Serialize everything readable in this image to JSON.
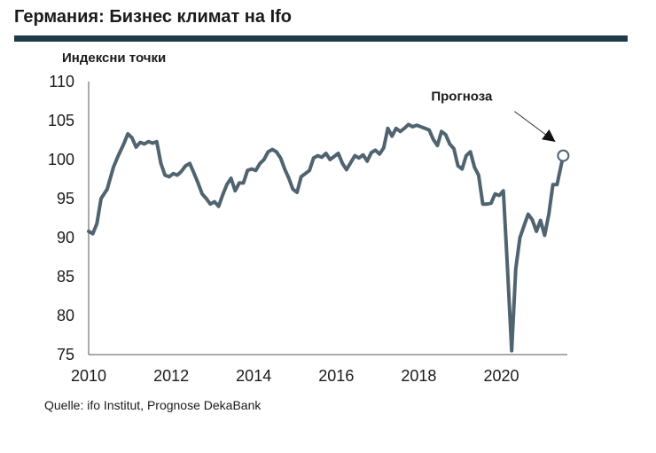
{
  "header": {
    "title": "Германия: Бизнес климат на Ifo"
  },
  "source": "Quelle: ifo Institut, Prognose DekaBank",
  "chart_data": {
    "type": "line",
    "title": "Германия: Бизнес климат на Ifo",
    "ylabel": "Индексни точки",
    "xlabel": "",
    "ylim": [
      75,
      110
    ],
    "yticks": [
      75,
      80,
      85,
      90,
      95,
      100,
      105,
      110
    ],
    "xlim": [
      2010,
      2021.6
    ],
    "xticks": [
      2010,
      2012,
      2014,
      2016,
      2018,
      2020
    ],
    "grid": false,
    "annotation": {
      "text": "Прогноза",
      "x": 2021.5,
      "y": 100.5
    },
    "colors": {
      "line": "#4f6470",
      "rule": "#1f3a4a"
    },
    "series": [
      {
        "x": [
          2010.0,
          2010.1,
          2010.2,
          2010.3,
          2010.45,
          2010.6,
          2010.7,
          2010.85,
          2010.95,
          2011.05,
          2011.15,
          2011.25,
          2011.35,
          2011.45,
          2011.55,
          2011.65,
          2011.75,
          2011.85,
          2011.95,
          2012.05,
          2012.15,
          2012.25,
          2012.35,
          2012.45,
          2012.55,
          2012.65,
          2012.75,
          2012.85,
          2012.95,
          2013.05,
          2013.15,
          2013.25,
          2013.35,
          2013.45,
          2013.55,
          2013.65,
          2013.75,
          2013.85,
          2013.95,
          2014.05,
          2014.15,
          2014.25,
          2014.35,
          2014.45,
          2014.55,
          2014.65,
          2014.75,
          2014.85,
          2014.95,
          2015.05,
          2015.15,
          2015.25,
          2015.35,
          2015.45,
          2015.55,
          2015.65,
          2015.75,
          2015.85,
          2015.95,
          2016.05,
          2016.15,
          2016.25,
          2016.35,
          2016.45,
          2016.55,
          2016.65,
          2016.75,
          2016.85,
          2016.95,
          2017.05,
          2017.15,
          2017.25,
          2017.35,
          2017.45,
          2017.55,
          2017.65,
          2017.75,
          2017.85,
          2017.95,
          2018.05,
          2018.15,
          2018.25,
          2018.35,
          2018.45,
          2018.55,
          2018.65,
          2018.75,
          2018.85,
          2018.95,
          2019.05,
          2019.15,
          2019.25,
          2019.35,
          2019.45,
          2019.55,
          2019.65,
          2019.75,
          2019.85,
          2019.95,
          2020.05,
          2020.15,
          2020.25,
          2020.35,
          2020.45,
          2020.55,
          2020.65,
          2020.75,
          2020.85,
          2020.95,
          2021.05,
          2021.15,
          2021.25,
          2021.35,
          2021.5
        ],
        "y": [
          90.8,
          90.5,
          91.8,
          95.0,
          96.2,
          99.0,
          100.3,
          102.0,
          103.3,
          102.8,
          101.6,
          102.2,
          102.0,
          102.3,
          102.1,
          102.3,
          99.5,
          98.0,
          97.8,
          98.2,
          98.0,
          98.5,
          99.2,
          99.5,
          98.3,
          97.0,
          95.6,
          95.0,
          94.3,
          94.6,
          94.0,
          95.5,
          96.8,
          97.6,
          96.0,
          97.0,
          97.0,
          98.6,
          98.8,
          98.6,
          99.5,
          100.0,
          101.0,
          101.3,
          101.0,
          100.2,
          98.8,
          97.6,
          96.2,
          95.8,
          97.8,
          98.2,
          98.6,
          100.2,
          100.5,
          100.3,
          100.8,
          100.0,
          100.4,
          100.8,
          99.5,
          98.7,
          99.6,
          100.5,
          100.2,
          100.6,
          99.8,
          100.9,
          101.2,
          100.7,
          101.5,
          104.0,
          103.0,
          104.0,
          103.6,
          104.0,
          104.5,
          104.2,
          104.4,
          104.2,
          104.0,
          103.8,
          102.6,
          101.8,
          103.6,
          103.2,
          102.0,
          101.4,
          99.2,
          98.8,
          100.5,
          101.0,
          99.0,
          98.0,
          94.3,
          94.3,
          94.4,
          95.6,
          95.4,
          96.0,
          86.0,
          75.5,
          86.0,
          90.0,
          91.5,
          93.0,
          92.3,
          90.8,
          92.2,
          90.3,
          93.0,
          96.8,
          96.8,
          100.5
        ]
      }
    ]
  }
}
